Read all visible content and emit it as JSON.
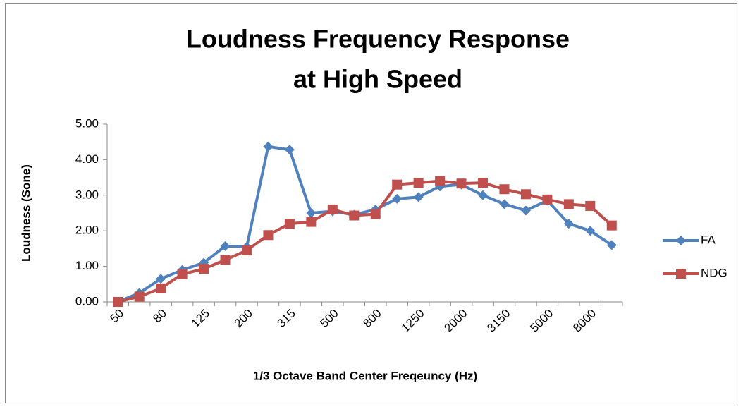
{
  "chart_data": {
    "type": "line",
    "title": [
      "Loudness Frequency Response",
      "at High Speed"
    ],
    "x_label": "1/3 Octave Band Center Freqeuncy (Hz)",
    "y_label": "Loudness (Sone)",
    "categories": [
      "50",
      null,
      "80",
      null,
      "125",
      null,
      "200",
      null,
      "315",
      null,
      "500",
      null,
      "800",
      null,
      "1250",
      null,
      "2000",
      null,
      "3150",
      null,
      "5000",
      null,
      "8000",
      null
    ],
    "series": [
      {
        "name": "FA",
        "color": "#4f81bd",
        "marker": "diamond",
        "values": [
          0,
          0.25,
          0.65,
          0.9,
          1.1,
          1.57,
          1.55,
          4.37,
          4.28,
          2.5,
          2.55,
          2.45,
          2.6,
          2.9,
          2.95,
          3.25,
          3.3,
          3.0,
          2.75,
          2.57,
          2.85,
          2.2,
          2.0,
          1.6
        ]
      },
      {
        "name": "NDG",
        "color": "#c0504d",
        "marker": "square",
        "values": [
          0,
          0.15,
          0.38,
          0.78,
          0.93,
          1.18,
          1.45,
          1.88,
          2.2,
          2.25,
          2.6,
          2.43,
          2.47,
          3.3,
          3.35,
          3.4,
          3.33,
          3.35,
          3.17,
          3.03,
          2.88,
          2.75,
          2.7,
          2.15
        ]
      }
    ],
    "ylim": [
      0,
      5
    ],
    "yticks": [
      {
        "value": 0,
        "label": "0.00"
      },
      {
        "value": 1,
        "label": "1.00"
      },
      {
        "value": 2,
        "label": "2.00"
      },
      {
        "value": 3,
        "label": "3.00"
      },
      {
        "value": 4,
        "label": "4.00"
      },
      {
        "value": 5,
        "label": "5.00"
      }
    ],
    "grid": false,
    "legend": "right"
  }
}
